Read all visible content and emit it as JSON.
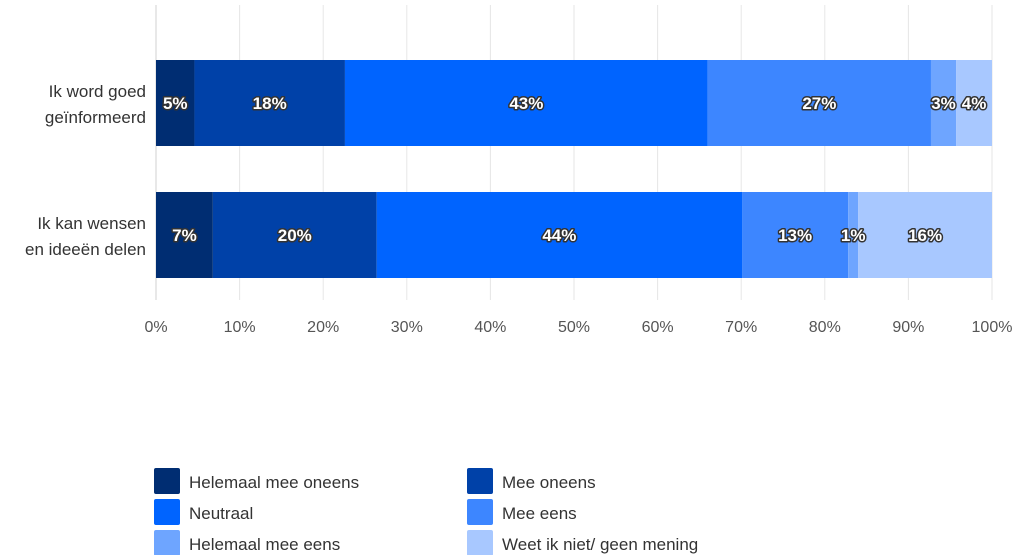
{
  "chart_data": {
    "type": "bar",
    "orientation": "horizontal",
    "stacked": true,
    "categories": [
      [
        "Ik word goed",
        "geïnformeerd"
      ],
      [
        "Ik kan wensen",
        "en ideeën delen"
      ]
    ],
    "series": [
      {
        "name": "Helemaal mee oneens",
        "color": "#002d72",
        "values": [
          4.6,
          6.8
        ],
        "labels": [
          "5%",
          "7%"
        ]
      },
      {
        "name": "Mee oneens",
        "color": "#0041a8",
        "values": [
          18.0,
          19.6
        ],
        "labels": [
          "18%",
          "20%"
        ]
      },
      {
        "name": "Neutraal",
        "color": "#0064ff",
        "values": [
          43.4,
          43.7
        ],
        "labels": [
          "43%",
          "44%"
        ]
      },
      {
        "name": "Mee eens",
        "color": "#3d86ff",
        "values": [
          26.7,
          12.7
        ],
        "labels": [
          "27%",
          "13%"
        ]
      },
      {
        "name": "Helemaal mee eens",
        "color": "#6ea5ff",
        "values": [
          3.0,
          1.2
        ],
        "labels": [
          "3%",
          "1%"
        ]
      },
      {
        "name": "Weet ik niet/ geen mening",
        "color": "#a8c8ff",
        "values": [
          4.3,
          16.0
        ],
        "labels": [
          "4%",
          "16%"
        ]
      }
    ],
    "x_ticks": [
      "0%",
      "10%",
      "20%",
      "30%",
      "40%",
      "50%",
      "60%",
      "70%",
      "80%",
      "90%",
      "100%"
    ],
    "xlim": [
      0,
      100
    ],
    "grid": true,
    "legend_position": "bottom",
    "title": "",
    "xlabel": "",
    "ylabel": ""
  }
}
